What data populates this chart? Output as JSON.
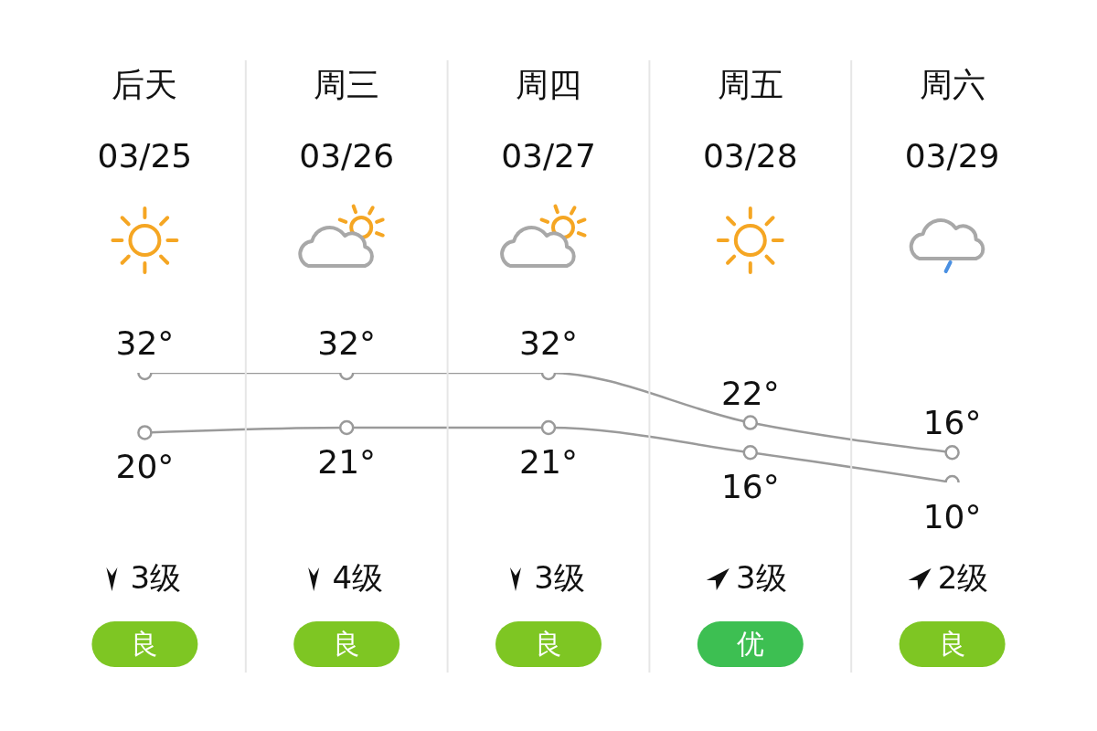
{
  "chart_data": {
    "type": "line",
    "categories": [
      "后天\n03/25",
      "周三\n03/26",
      "周四\n03/27",
      "周五\n03/28",
      "周六\n03/29"
    ],
    "series": [
      {
        "color": "#9a9a9a",
        "values": [
          32,
          32,
          32,
          22,
          16
        ],
        "value_labels": [
          "32°",
          "32°",
          "32°",
          "22°",
          "16°"
        ]
      },
      {
        "color": "#9a9a9a",
        "values": [
          20,
          21,
          21,
          16,
          10
        ],
        "value_labels": [
          "20°",
          "21°",
          "21°",
          "16°",
          "10°"
        ]
      }
    ],
    "tick_labels": "x",
    "marker": "circle",
    "line_style": "solid",
    "annotations": [
      "3级",
      "4级",
      "3级",
      "3级",
      "2级",
      "良",
      "良",
      "良",
      "优",
      "良"
    ]
  }
}
